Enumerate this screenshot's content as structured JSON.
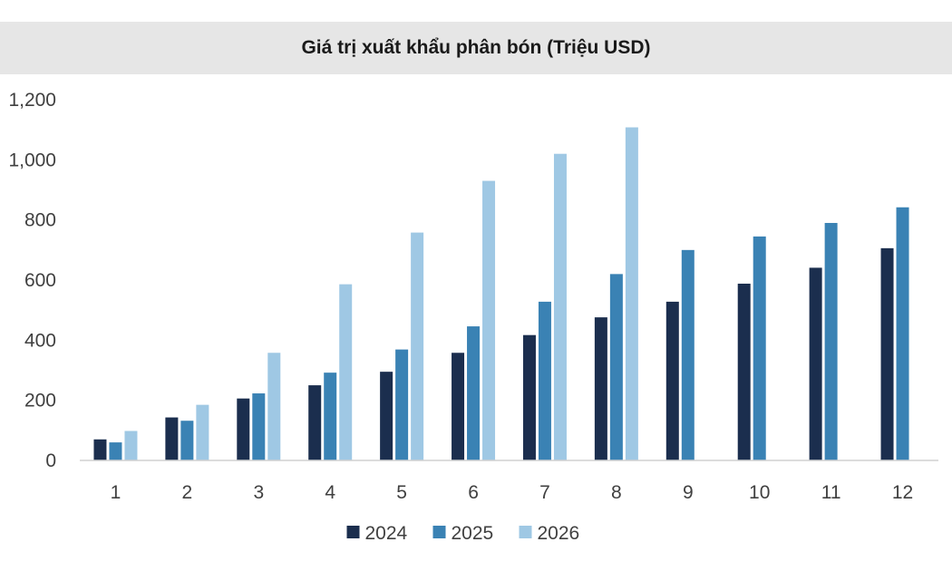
{
  "chart_data": {
    "type": "bar",
    "title": "Giá trị xuất khẩu phân bón (Triệu USD)",
    "categories": [
      "1",
      "2",
      "3",
      "4",
      "5",
      "6",
      "7",
      "8",
      "9",
      "10",
      "11",
      "12"
    ],
    "series": [
      {
        "name": "2024",
        "color": "#1b2e4e",
        "values": [
          70,
          143,
          206,
          250,
          295,
          358,
          417,
          476,
          528,
          588,
          641,
          706
        ]
      },
      {
        "name": "2025",
        "color": "#3a82b4",
        "values": [
          60,
          132,
          223,
          292,
          369,
          446,
          528,
          620,
          700,
          745,
          790,
          842
        ]
      },
      {
        "name": "2026",
        "color": "#9fc8e4",
        "values": [
          98,
          185,
          358,
          586,
          758,
          930,
          1020,
          1108,
          null,
          null,
          null,
          null
        ]
      }
    ],
    "ylim": [
      0,
      1200
    ],
    "yticks": [
      0,
      200,
      400,
      600,
      800,
      1000,
      1200
    ],
    "ytick_labels": [
      "0",
      "200",
      "400",
      "600",
      "800",
      "1,000",
      "1,200"
    ],
    "grid": false,
    "legend_position": "bottom"
  }
}
